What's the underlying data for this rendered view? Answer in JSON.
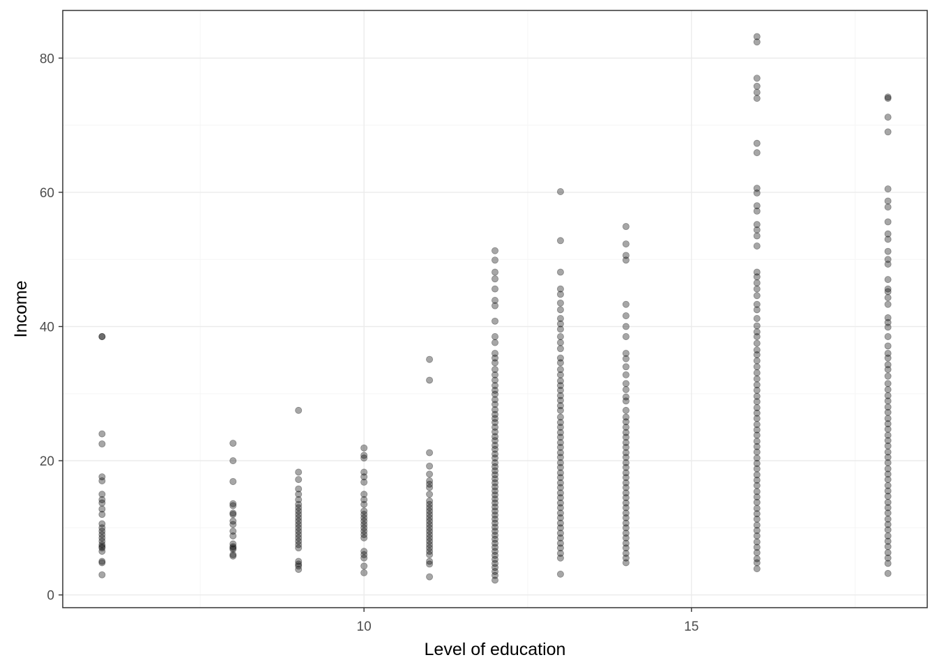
{
  "chart_data": {
    "type": "scatter",
    "title": "",
    "xlabel": "Level of education",
    "ylabel": "Income",
    "xlim": [
      5.4,
      18.6
    ],
    "ylim": [
      -1.9,
      87.1
    ],
    "x_ticks": [
      10,
      15
    ],
    "y_ticks": [
      0,
      20,
      40,
      60,
      80
    ],
    "x_tick_labels": [
      "10",
      "15"
    ],
    "y_tick_labels": [
      "0",
      "20",
      "40",
      "60",
      "80"
    ],
    "grid": true,
    "legend": "none",
    "point_color": "#000000",
    "point_opacity": 0.35,
    "panel_border_color": "#333333",
    "grid_major_color": "#ebebeb",
    "grid_minor_color": "#f5f5f5",
    "points": [
      {
        "x": 6,
        "y": [
          38.5,
          38.5,
          24.0,
          22.5,
          17.6,
          17.0,
          15.0,
          14.2,
          13.7,
          12.8,
          12.0,
          10.6,
          10.0,
          9.5,
          9.0,
          8.5,
          8.0,
          7.5,
          7.2,
          7.0,
          6.5,
          5.0,
          4.8,
          3.0
        ]
      },
      {
        "x": 8,
        "y": [
          22.6,
          20.0,
          16.9,
          13.6,
          13.3,
          12.2,
          12.0,
          11.0,
          10.5,
          9.5,
          8.8,
          7.6,
          7.2,
          7.0,
          6.8,
          6.0,
          5.8
        ]
      },
      {
        "x": 9,
        "y": [
          27.5,
          18.3,
          17.2,
          15.8,
          15.0,
          14.2,
          13.5,
          13.0,
          12.5,
          12.0,
          11.5,
          11.0,
          10.5,
          10.0,
          9.5,
          9.0,
          8.5,
          8.0,
          7.5,
          7.0,
          5.0,
          4.6,
          4.3,
          3.8
        ]
      },
      {
        "x": 10,
        "y": [
          21.9,
          20.8,
          20.4,
          18.3,
          17.6,
          16.8,
          15.0,
          14.2,
          13.5,
          12.5,
          12.0,
          11.5,
          11.0,
          10.5,
          10.0,
          9.5,
          9.0,
          8.5,
          6.5,
          6.0,
          5.5,
          4.3,
          3.3
        ]
      },
      {
        "x": 11,
        "y": [
          35.1,
          32.0,
          21.2,
          19.2,
          18.0,
          17.0,
          16.5,
          16.0,
          15.0,
          14.0,
          13.5,
          13.0,
          12.5,
          12.0,
          11.5,
          11.0,
          10.5,
          10.0,
          9.5,
          9.0,
          8.5,
          8.0,
          7.5,
          7.0,
          6.5,
          6.0,
          5.0,
          4.6,
          2.7
        ]
      },
      {
        "x": 12,
        "y": [
          51.3,
          49.9,
          48.1,
          47.1,
          45.6,
          43.9,
          43.1,
          40.8,
          38.5,
          37.6,
          36.0,
          35.3,
          34.6,
          33.6,
          32.8,
          32.0,
          31.2,
          30.5,
          29.9,
          29.1,
          28.4,
          27.6,
          26.9,
          26.3,
          25.7,
          25.0,
          24.3,
          23.6,
          23.0,
          22.3,
          21.7,
          21.0,
          20.4,
          19.7,
          19.1,
          18.5,
          17.9,
          17.3,
          16.7,
          16.1,
          15.5,
          14.9,
          14.3,
          13.7,
          13.1,
          12.5,
          11.9,
          11.3,
          10.7,
          10.1,
          9.5,
          8.9,
          8.3,
          7.7,
          7.1,
          6.5,
          5.9,
          5.3,
          4.7,
          4.1,
          3.5,
          2.9,
          2.2
        ]
      },
      {
        "x": 13,
        "y": [
          60.1,
          52.8,
          48.1,
          45.6,
          44.8,
          43.5,
          42.5,
          41.2,
          40.4,
          39.6,
          38.5,
          37.6,
          36.7,
          35.3,
          34.6,
          33.6,
          32.8,
          31.9,
          31.2,
          30.5,
          29.7,
          29.0,
          28.2,
          27.5,
          26.5,
          25.7,
          25.0,
          24.2,
          23.5,
          22.7,
          22.0,
          21.2,
          20.5,
          19.7,
          19.0,
          18.2,
          17.5,
          16.7,
          16.0,
          15.2,
          14.5,
          13.7,
          13.0,
          12.2,
          11.5,
          10.7,
          10.0,
          9.2,
          8.5,
          7.7,
          7.0,
          6.2,
          5.5,
          3.1
        ]
      },
      {
        "x": 14,
        "y": [
          54.9,
          52.3,
          50.6,
          49.9,
          43.3,
          41.6,
          40.0,
          38.5,
          36.0,
          35.2,
          34.0,
          32.8,
          31.5,
          30.6,
          29.5,
          28.9,
          27.5,
          26.5,
          25.8,
          25.0,
          24.2,
          23.5,
          22.7,
          22.0,
          21.2,
          20.5,
          19.7,
          19.0,
          18.2,
          17.5,
          16.7,
          16.0,
          15.2,
          14.5,
          13.7,
          13.0,
          12.2,
          11.5,
          10.7,
          10.0,
          9.2,
          8.5,
          7.7,
          7.0,
          6.2,
          5.5,
          4.8
        ]
      },
      {
        "x": 16,
        "y": [
          83.2,
          82.4,
          77.0,
          75.8,
          74.9,
          74.0,
          67.3,
          65.9,
          60.6,
          59.9,
          58.0,
          57.2,
          55.2,
          54.4,
          53.5,
          52.0,
          48.1,
          47.4,
          46.5,
          45.6,
          44.6,
          43.3,
          42.5,
          41.2,
          40.1,
          39.2,
          38.5,
          37.5,
          36.5,
          35.8,
          34.9,
          34.0,
          33.1,
          32.2,
          31.3,
          30.5,
          29.6,
          28.8,
          27.9,
          27.1,
          26.3,
          25.4,
          24.6,
          23.8,
          22.9,
          22.1,
          21.3,
          20.4,
          19.6,
          18.8,
          17.9,
          17.1,
          16.3,
          15.4,
          14.6,
          13.8,
          12.9,
          12.1,
          11.3,
          10.4,
          9.6,
          8.8,
          7.9,
          7.1,
          6.3,
          5.4,
          4.8,
          3.9
        ]
      },
      {
        "x": 18,
        "y": [
          74.2,
          74.0,
          71.2,
          69.0,
          60.5,
          58.7,
          57.8,
          55.6,
          53.8,
          53.0,
          51.2,
          50.0,
          49.3,
          47.0,
          45.6,
          45.2,
          44.3,
          43.3,
          41.3,
          40.6,
          39.9,
          38.5,
          37.1,
          36.0,
          35.3,
          34.3,
          33.6,
          32.6,
          31.5,
          30.6,
          29.7,
          28.9,
          28.0,
          27.2,
          26.3,
          25.5,
          24.7,
          23.8,
          23.0,
          22.2,
          21.3,
          20.5,
          19.7,
          18.8,
          18.0,
          17.2,
          16.3,
          15.5,
          14.7,
          13.8,
          13.0,
          12.2,
          11.3,
          10.5,
          9.7,
          8.8,
          8.0,
          7.2,
          6.3,
          5.5,
          4.7,
          3.2
        ]
      }
    ]
  }
}
